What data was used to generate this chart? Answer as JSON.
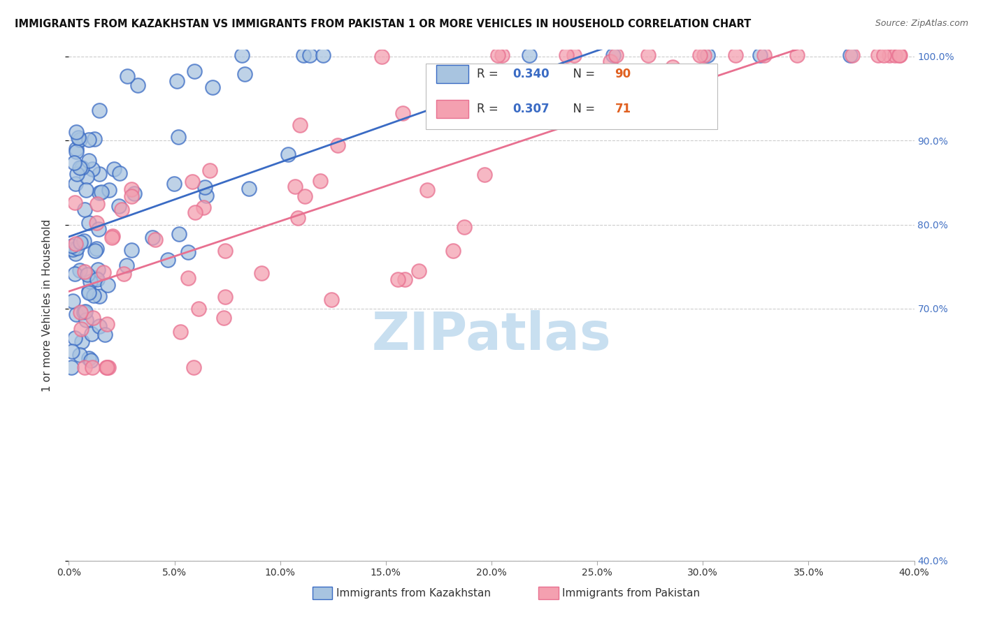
{
  "title": "IMMIGRANTS FROM KAZAKHSTAN VS IMMIGRANTS FROM PAKISTAN 1 OR MORE VEHICLES IN HOUSEHOLD CORRELATION CHART",
  "source": "Source: ZipAtlas.com",
  "ylabel": "1 or more Vehicles in Household",
  "legend_kaz": "Immigrants from Kazakhstan",
  "legend_pak": "Immigrants from Pakistan",
  "R_kaz": 0.34,
  "N_kaz": 90,
  "R_pak": 0.307,
  "N_pak": 71,
  "color_kaz": "#a8c4e0",
  "color_pak": "#f4a0b0",
  "line_color_kaz": "#3a6bc4",
  "line_color_pak": "#e87090",
  "watermark_color": "#c8dff0",
  "xmin": 0.0,
  "xmax": 0.4,
  "ymin": 0.4,
  "ymax": 1.008,
  "y_ticks": [
    0.4,
    0.7,
    0.8,
    0.9,
    1.0
  ],
  "right_tick_color": "#4472c4",
  "N_color": "#e06020",
  "grid_color": "#cccccc",
  "legend_box_color": "#bbbbbb"
}
